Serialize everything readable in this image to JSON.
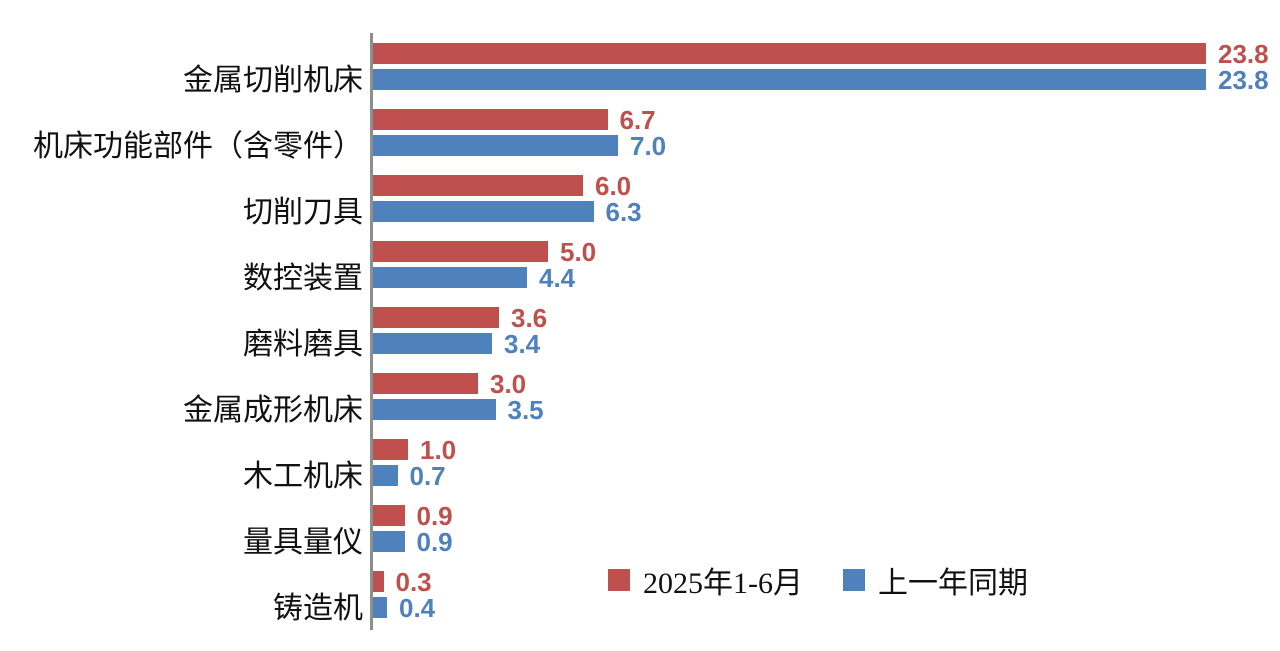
{
  "chart_data": {
    "type": "bar",
    "orientation": "horizontal",
    "title": "",
    "xlabel": "",
    "ylabel": "",
    "xlim": [
      0,
      23.8
    ],
    "grid": false,
    "legend_position": "inside-bottom-right",
    "axis_color": "#8e8e8e",
    "categories": [
      "金属切削机床",
      "机床功能部件（含零件）",
      "切削刀具",
      "数控装置",
      "磨料磨具",
      "金属成形机床",
      "木工机床",
      "量具量仪",
      "铸造机"
    ],
    "series": [
      {
        "name": "2025年1-6月",
        "color": "#C0504D",
        "values": [
          23.8,
          6.7,
          6.0,
          5.0,
          3.6,
          3.0,
          1.0,
          0.9,
          0.3
        ]
      },
      {
        "name": "上一年同期",
        "color": "#4F81BD",
        "values": [
          23.8,
          7.0,
          6.3,
          4.4,
          3.4,
          3.5,
          0.7,
          0.9,
          0.4
        ]
      }
    ]
  },
  "legend": {
    "series1_label": "2025年1-6月",
    "series2_label": "上一年同期"
  }
}
